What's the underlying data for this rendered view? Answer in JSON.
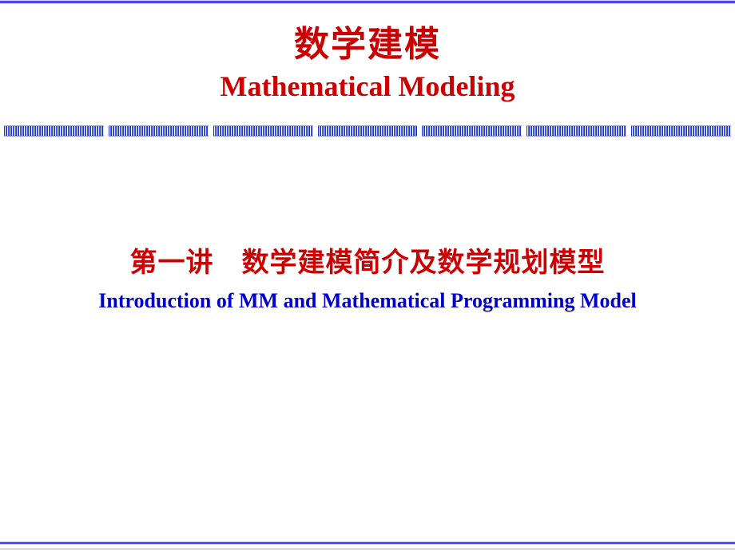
{
  "title": {
    "cn": "数学建模",
    "en": "Mathematical Modeling",
    "cn_color": "#cc0000",
    "en_color": "#cc0000",
    "cn_fontsize": 44,
    "en_fontsize": 36
  },
  "subtitle": {
    "cn": "第一讲　数学建模简介及数学规划模型",
    "en": "Introduction of MM and Mathematical  Programming Model",
    "cn_color": "#cc0000",
    "en_color": "#0000cc",
    "cn_fontsize": 34,
    "en_fontsize": 26
  },
  "layout": {
    "background_color": "#ffffff",
    "bar_segments": 7,
    "title_top_margin": 14,
    "title_gap": 4
  }
}
